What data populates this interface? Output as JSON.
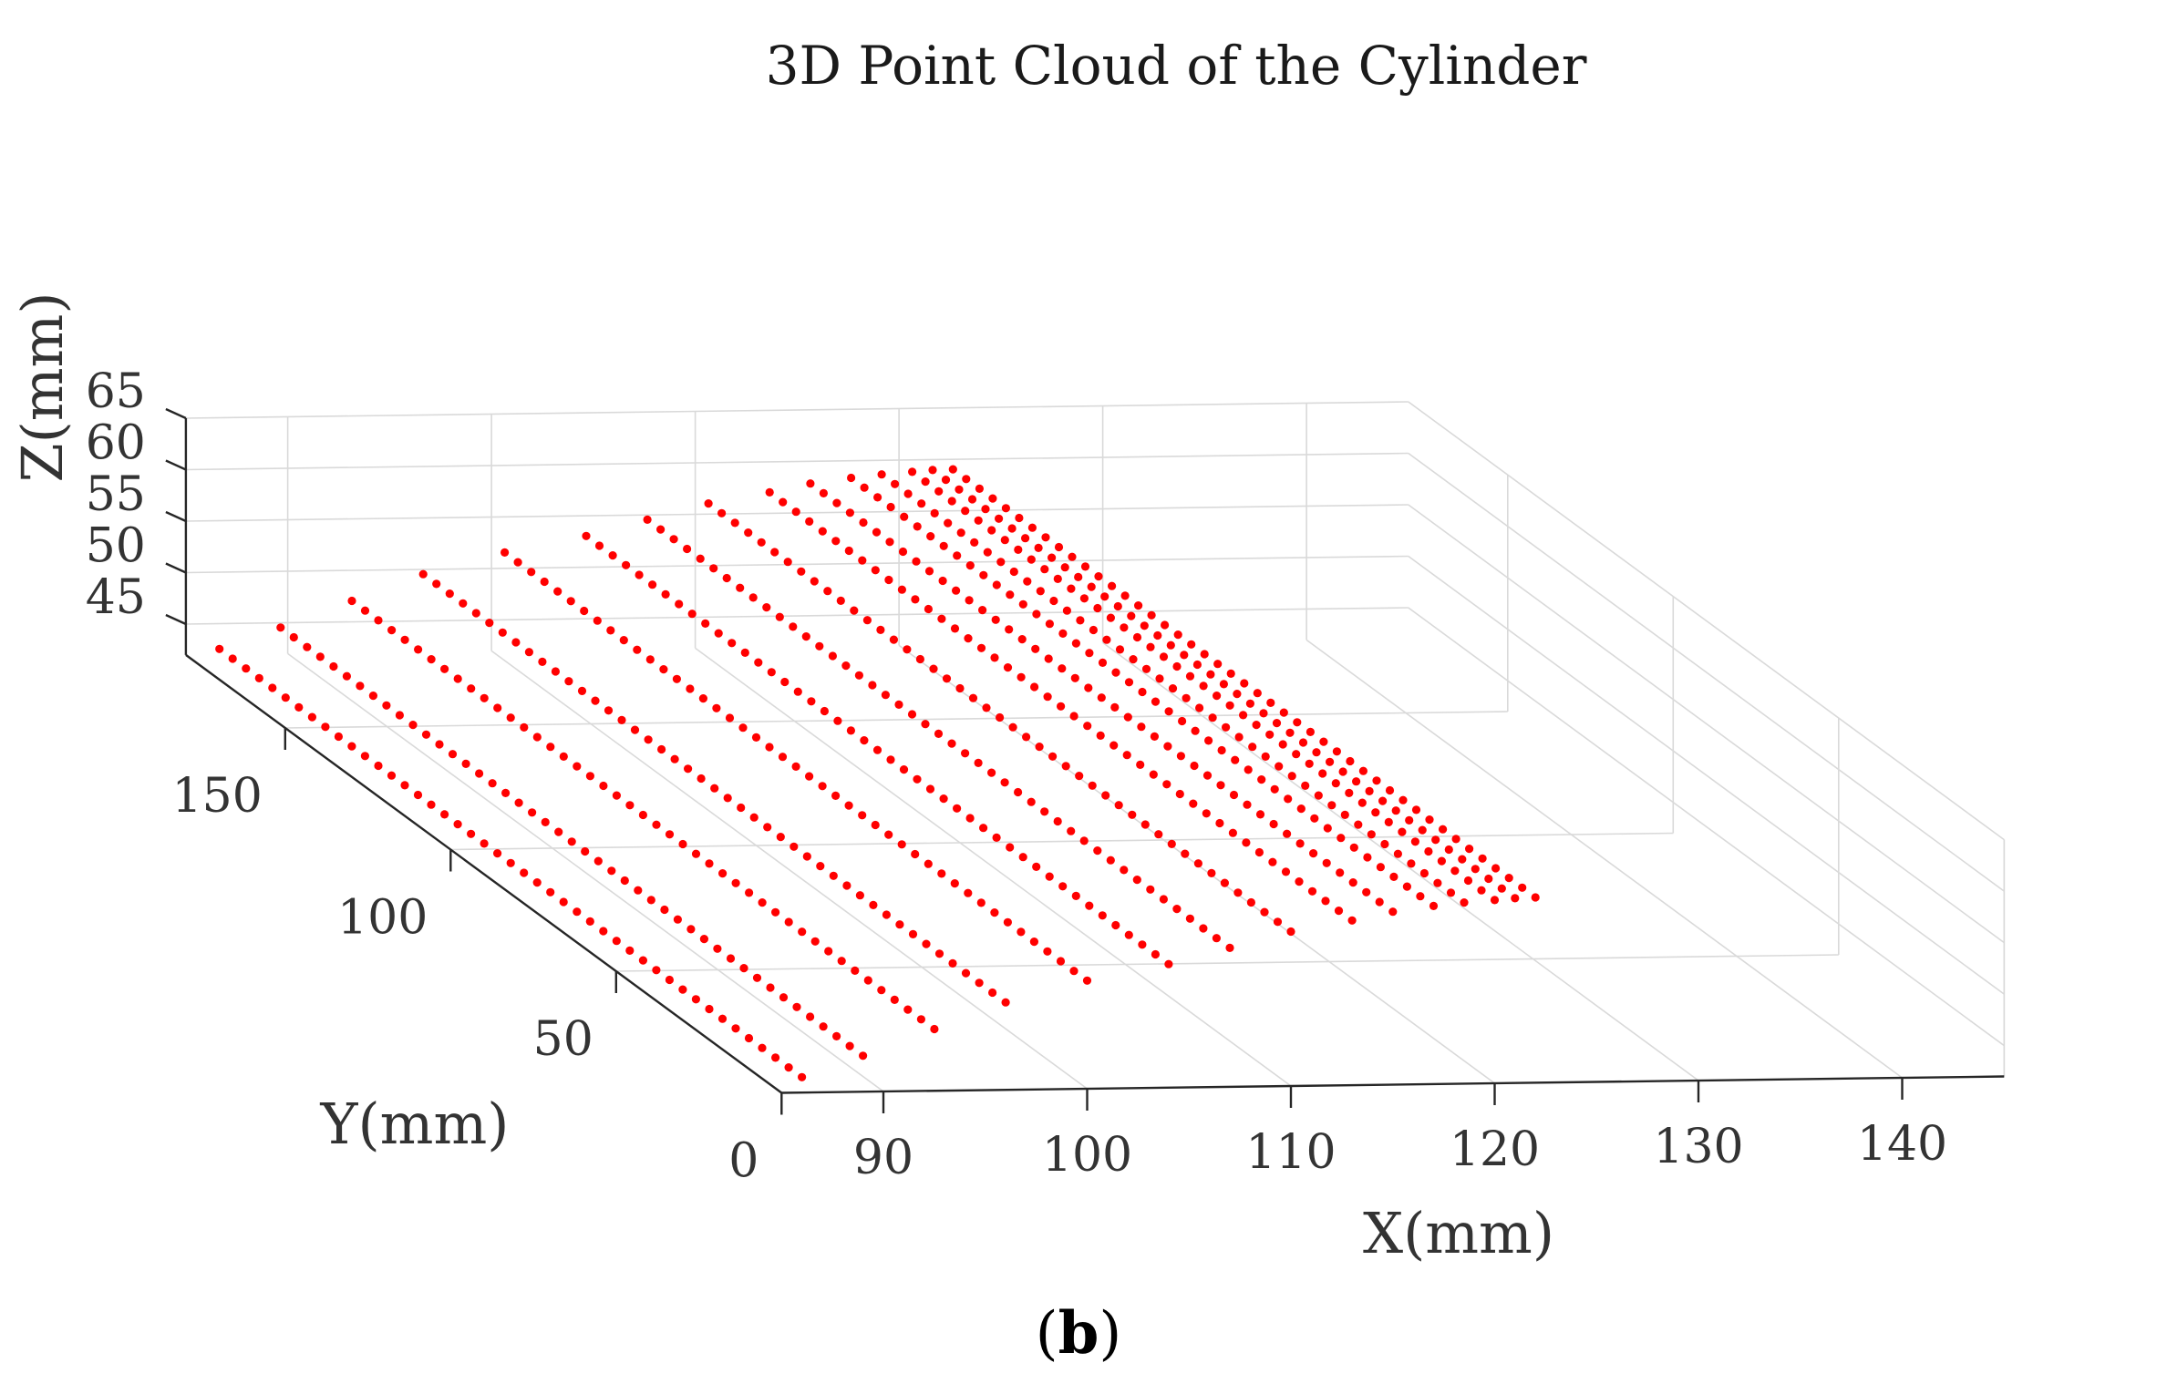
{
  "figure": {
    "caption_open": "(",
    "caption_letter": "b",
    "caption_close": ")"
  },
  "chart_data": {
    "type": "scatter",
    "projection": "3d",
    "title": "3D Point Cloud of the Cylinder",
    "xlabel": "X(mm)",
    "ylabel": "Y(mm)",
    "zlabel": "Z(mm)",
    "xlim": [
      85,
      145
    ],
    "ylim": [
      0,
      180
    ],
    "zlim": [
      42,
      65
    ],
    "x_ticks": [
      90,
      100,
      110,
      120,
      130,
      140
    ],
    "y_ticks": [
      0,
      50,
      100,
      150
    ],
    "z_ticks": [
      45,
      50,
      55,
      60,
      65
    ],
    "grid": true,
    "marker_color": "#ff0000",
    "cylinder": {
      "axis_x": 121.5,
      "axis_z": 45,
      "radius": 15,
      "axis_direction": "y"
    },
    "scan_lines": {
      "x": [
        86,
        89,
        92.5,
        96,
        100,
        104,
        107,
        110,
        113,
        115,
        117,
        118.5,
        120,
        121,
        122
      ],
      "z": [
        43.5,
        45.5,
        48,
        50.5,
        52.5,
        54,
        55.5,
        57,
        58,
        58.8,
        59.3,
        59.6,
        59.8,
        59.95,
        60
      ],
      "y_start": 0,
      "y_end": 178,
      "y_step": 4
    }
  }
}
